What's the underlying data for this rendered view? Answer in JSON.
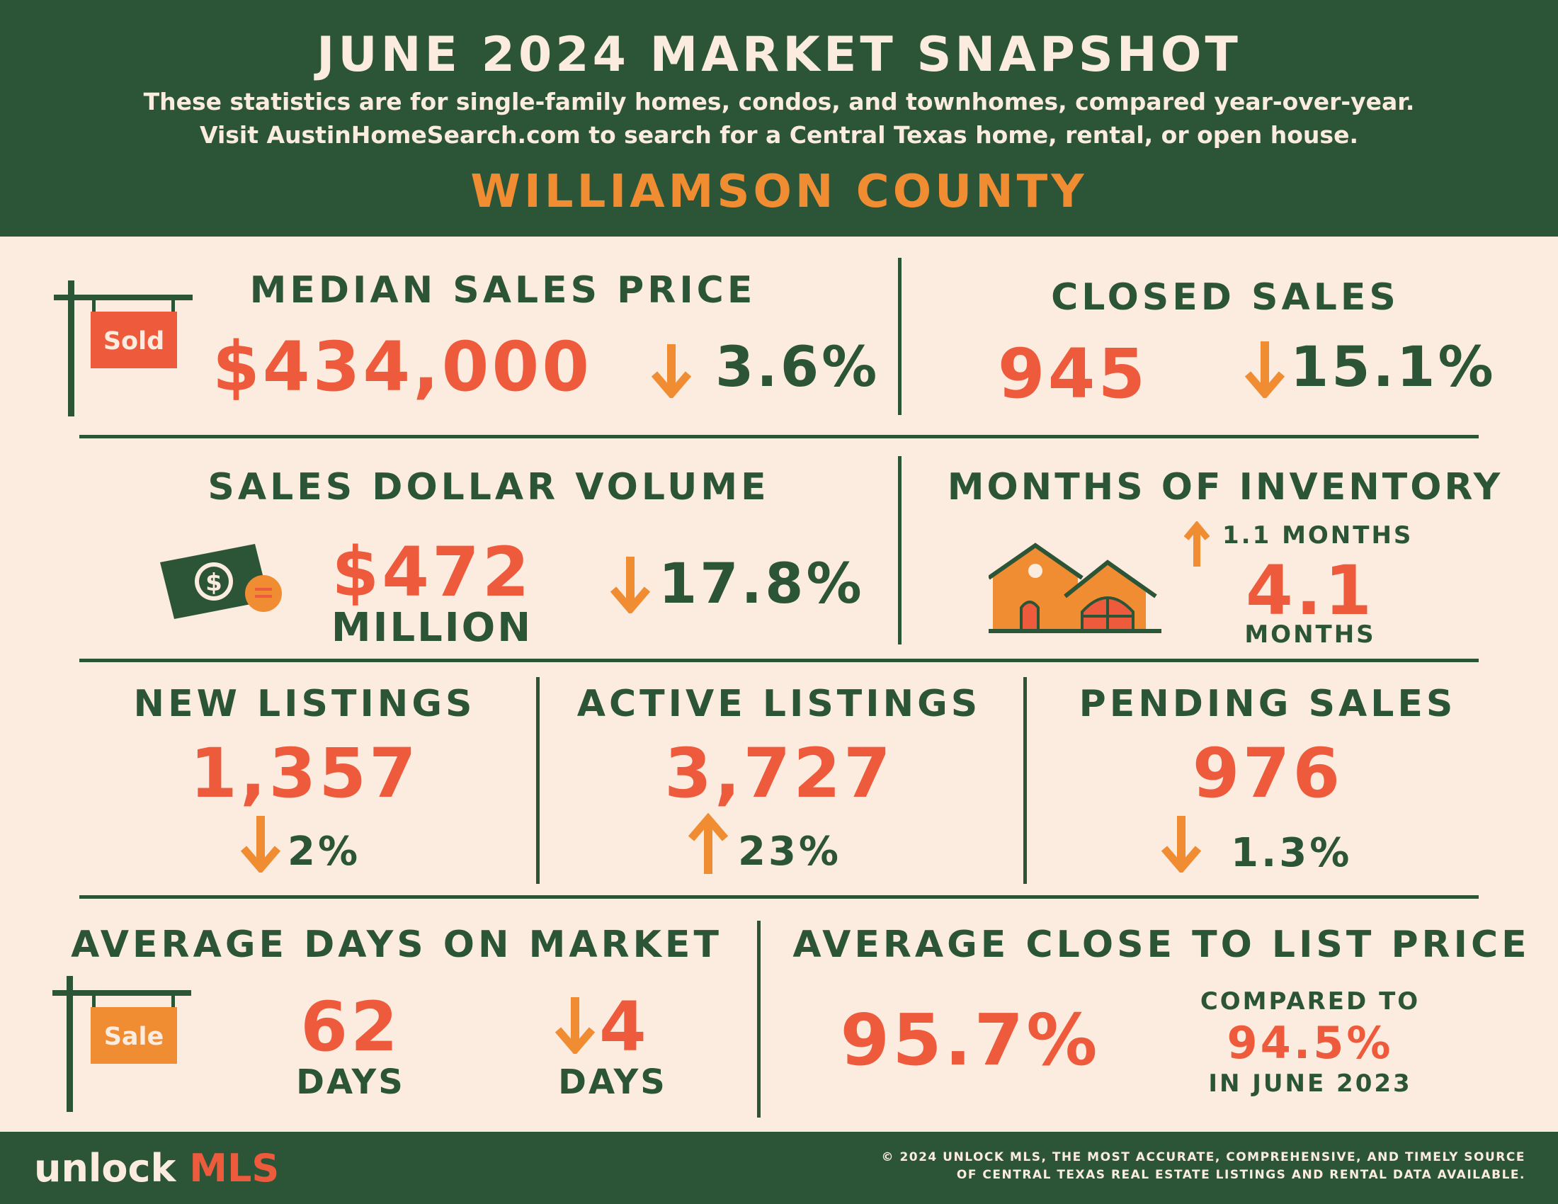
{
  "header": {
    "title": "JUNE 2024 MARKET SNAPSHOT",
    "subtitle_line1": "These statistics are for single-family homes, condos, and townhomes, compared year-over-year.",
    "subtitle_line2": "Visit AustinHomeSearch.com to search for a Central Texas home, rental, or open house.",
    "county": "WILLIAMSON COUNTY"
  },
  "median_sales_price": {
    "heading": "MEDIAN SALES PRICE",
    "value": "$434,000",
    "change": "3.6%",
    "direction": "down",
    "sign_label": "Sold"
  },
  "closed_sales": {
    "heading": "CLOSED SALES",
    "value": "945",
    "change": "15.1%",
    "direction": "down"
  },
  "sales_dollar_volume": {
    "heading": "SALES DOLLAR VOLUME",
    "value": "$472",
    "unit": "MILLION",
    "change": "17.8%",
    "direction": "down"
  },
  "months_of_inventory": {
    "heading": "MONTHS OF INVENTORY",
    "change": "1.1 MONTHS",
    "direction": "up",
    "value": "4.1",
    "unit": "MONTHS"
  },
  "new_listings": {
    "heading": "NEW LISTINGS",
    "value": "1,357",
    "change": "2%",
    "direction": "down"
  },
  "active_listings": {
    "heading": "ACTIVE LISTINGS",
    "value": "3,727",
    "change": "23%",
    "direction": "up"
  },
  "pending_sales": {
    "heading": "PENDING SALES",
    "value": "976",
    "change": "1.3%",
    "direction": "down"
  },
  "avg_days_on_market": {
    "heading": "AVERAGE DAYS ON MARKET",
    "value": "62",
    "unit": "DAYS",
    "change": "4",
    "change_unit": "DAYS",
    "direction": "down",
    "sign_label": "Sale"
  },
  "avg_close_to_list": {
    "heading": "AVERAGE CLOSE TO LIST PRICE",
    "value": "95.7%",
    "compare_label": "COMPARED TO",
    "compare_value": "94.5%",
    "compare_period": "IN JUNE 2023"
  },
  "footer": {
    "logo_unlock": "unlock",
    "logo_mls": "MLS",
    "copyright_line1": "© 2024 UNLOCK MLS, THE MOST ACCURATE, COMPREHENSIVE, AND TIMELY SOURCE",
    "copyright_line2": "OF CENTRAL TEXAS REAL ESTATE LISTINGS AND RENTAL DATA AVAILABLE."
  },
  "colors": {
    "green": "#2c5538",
    "cream": "#fcece0",
    "red": "#ee5b3c",
    "orange": "#f08c32"
  }
}
